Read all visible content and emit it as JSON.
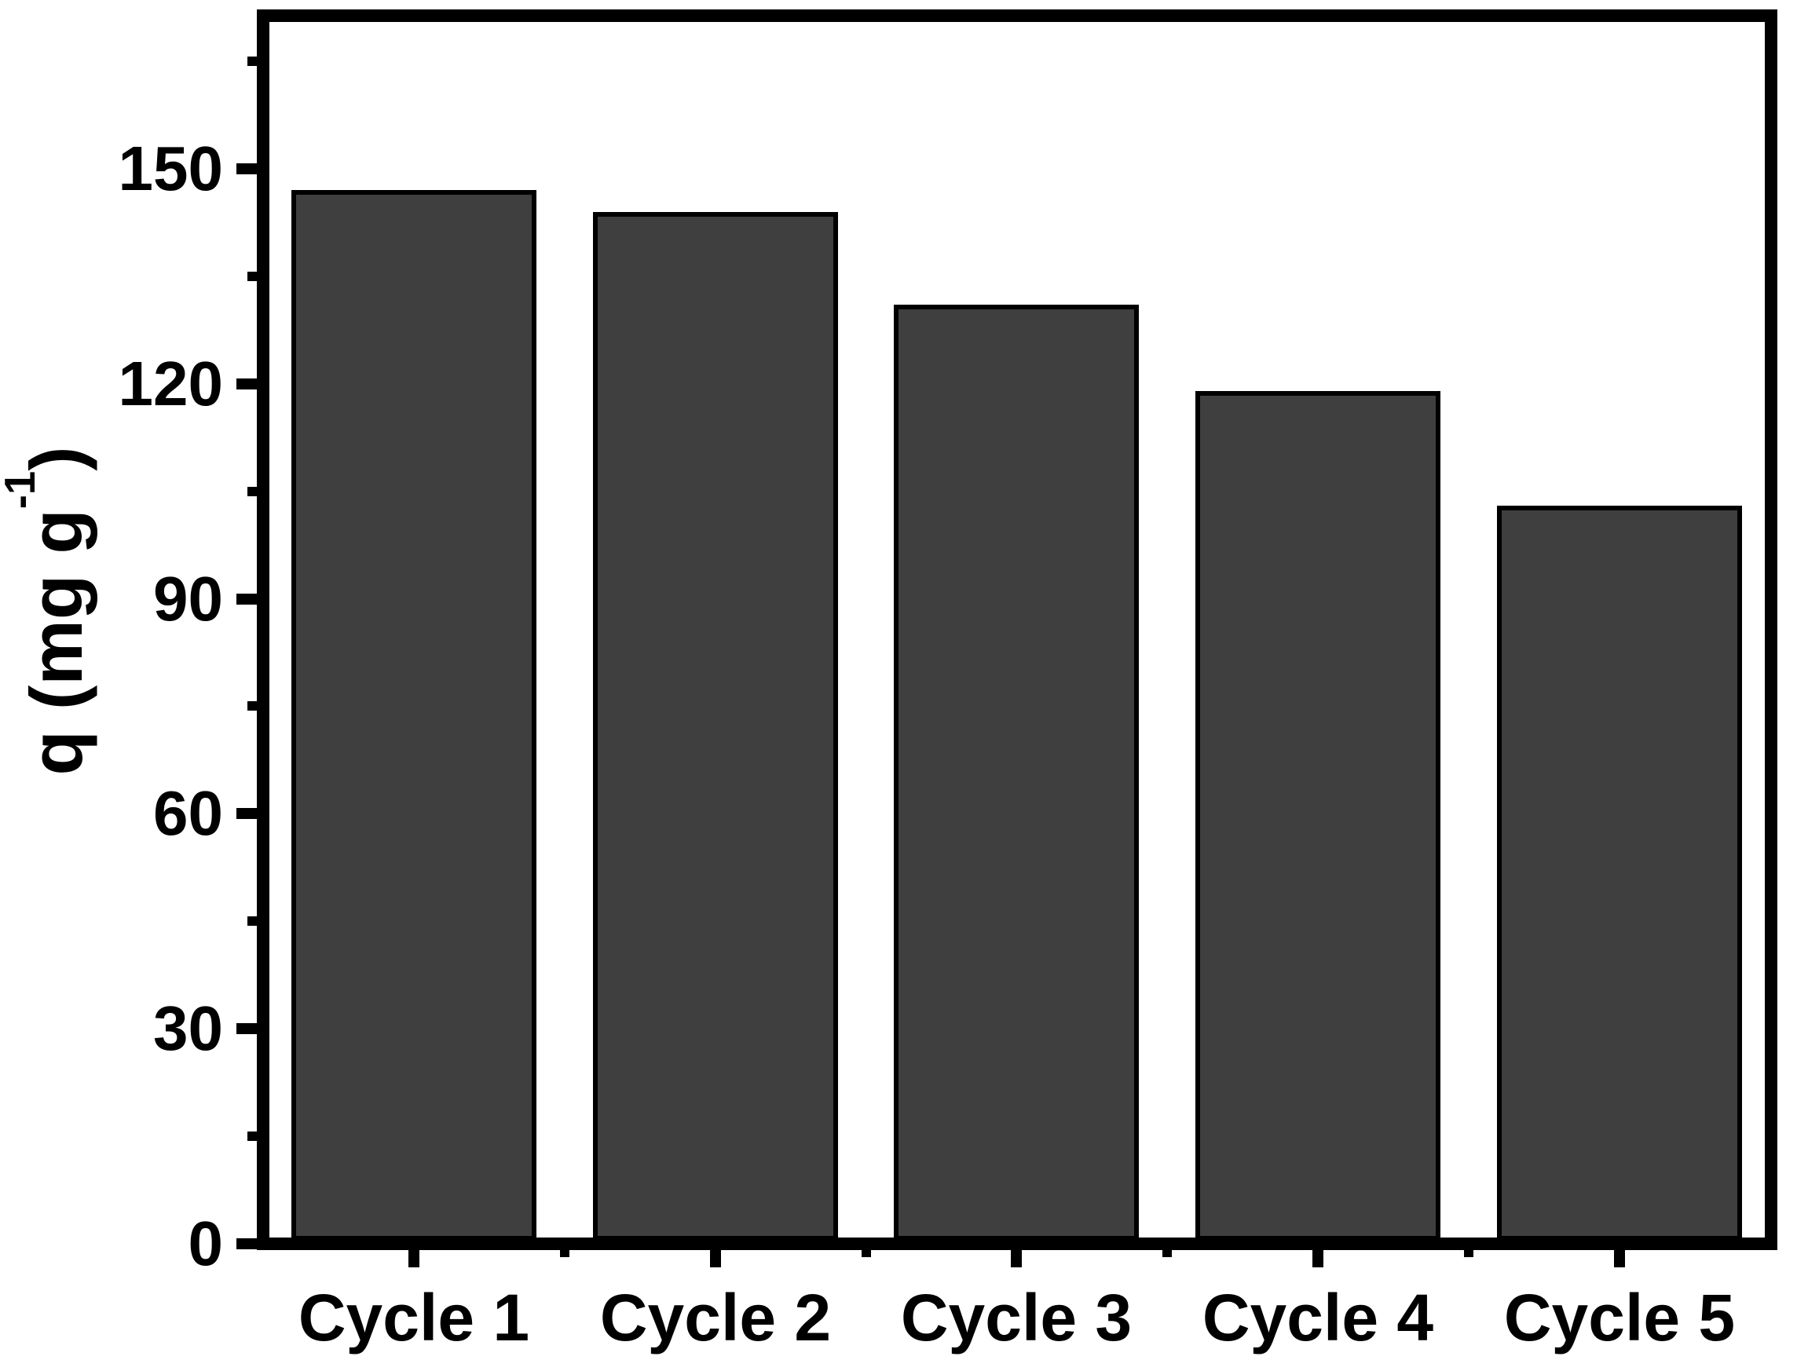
{
  "chart_data": {
    "type": "bar",
    "title": "",
    "xlabel": "",
    "ylabel": "q (mg g⁻¹)",
    "ylabel_parts": {
      "pre": "q (mg g",
      "sup": "-1",
      "post": ")"
    },
    "categories": [
      "Cycle 1",
      "Cycle 2",
      "Cycle 3",
      "Cycle 4",
      "Cycle 5"
    ],
    "values": [
      147,
      144,
      131,
      119,
      103
    ],
    "ylim": [
      0,
      170
    ],
    "yticks": [
      0,
      30,
      60,
      90,
      120,
      150
    ],
    "ytick_labels": [
      "0",
      "30",
      "60",
      "90",
      "120",
      "150"
    ],
    "y_minor_ticks": [
      15,
      45,
      75,
      105,
      135,
      165
    ],
    "grid": "off",
    "legend": "none",
    "bar_fill_color": "#3f3f3f",
    "bar_border_color": "#000000",
    "axis_color": "#000000",
    "background_color": "#ffffff"
  }
}
